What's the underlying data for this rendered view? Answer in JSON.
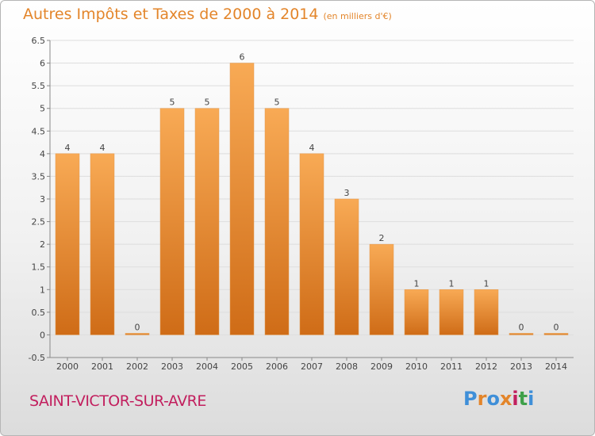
{
  "header": {
    "title": "Autres Impôts et Taxes de 2000 à 2014",
    "subtitle": "(en milliers d'€)"
  },
  "footer": {
    "place": "SAINT-VICTOR-SUR-AVRE",
    "logo": "Proxiti",
    "logo_colors": [
      "#3f8fd8",
      "#e3852a",
      "#3f8fd8",
      "#e3852a",
      "#c21f5e",
      "#3fa04a",
      "#3f8fd8"
    ]
  },
  "colors": {
    "title": "#e3852a",
    "place": "#c21f5e",
    "bar_light": "#f8aa55",
    "bar_dark": "#cf6c17"
  },
  "chart_data": {
    "type": "bar",
    "categories": [
      "2000",
      "2001",
      "2002",
      "2003",
      "2004",
      "2005",
      "2006",
      "2007",
      "2008",
      "2009",
      "2010",
      "2011",
      "2012",
      "2013",
      "2014"
    ],
    "values": [
      4,
      4,
      0,
      5,
      5,
      6,
      5,
      4,
      3,
      2,
      1,
      1,
      1,
      0,
      0
    ],
    "ylim": [
      -0.5,
      6.5
    ],
    "yticks": [
      "-0.5",
      "0",
      "0.5",
      "1",
      "1.5",
      "2",
      "2.5",
      "3",
      "3.5",
      "4",
      "4.5",
      "5",
      "5.5",
      "6",
      "6.5"
    ],
    "grid": true
  }
}
